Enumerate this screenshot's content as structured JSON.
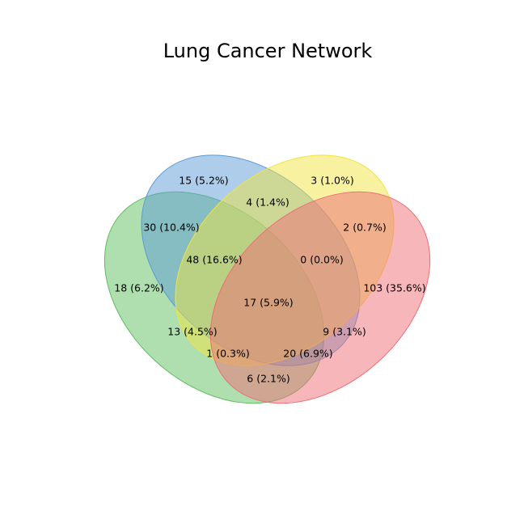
{
  "chart_data": {
    "type": "venn",
    "title": "Lung Cancer Network",
    "sets": [
      {
        "id": "blue",
        "color": "#5b9bd5"
      },
      {
        "id": "green",
        "color": "#5fbd5f"
      },
      {
        "id": "yellow",
        "color": "#f0e442"
      },
      {
        "id": "red",
        "color": "#ee6e76"
      }
    ],
    "regions": [
      {
        "sets": [
          "blue"
        ],
        "count": 15,
        "label": "15 (5.2%)"
      },
      {
        "sets": [
          "blue",
          "yellow"
        ],
        "count": 4,
        "label": "4 (1.4%)"
      },
      {
        "sets": [
          "yellow"
        ],
        "count": 3,
        "label": "3 (1.0%)"
      },
      {
        "sets": [
          "blue",
          "green"
        ],
        "count": 30,
        "label": "30 (10.4%)"
      },
      {
        "sets": [
          "yellow",
          "red"
        ],
        "count": 2,
        "label": "2 (0.7%)"
      },
      {
        "sets": [
          "blue",
          "green",
          "yellow"
        ],
        "count": 48,
        "label": "48 (16.6%)"
      },
      {
        "sets": [
          "blue",
          "yellow",
          "red"
        ],
        "count": 0,
        "label": "0 (0.0%)"
      },
      {
        "sets": [
          "green"
        ],
        "count": 18,
        "label": "18 (6.2%)"
      },
      {
        "sets": [
          "red"
        ],
        "count": 103,
        "label": "103 (35.6%)"
      },
      {
        "sets": [
          "blue",
          "green",
          "yellow",
          "red"
        ],
        "count": 17,
        "label": "17 (5.9%)"
      },
      {
        "sets": [
          "green",
          "yellow"
        ],
        "count": 13,
        "label": "13 (4.5%)"
      },
      {
        "sets": [
          "blue",
          "red"
        ],
        "count": 9,
        "label": "9 (3.1%)"
      },
      {
        "sets": [
          "green",
          "yellow",
          "red"
        ],
        "count": 1,
        "label": "1 (0.3%)"
      },
      {
        "sets": [
          "blue",
          "green",
          "red"
        ],
        "count": 20,
        "label": "20 (6.9%)"
      },
      {
        "sets": [
          "green",
          "red"
        ],
        "count": 6,
        "label": "6 (2.1%)"
      }
    ]
  }
}
